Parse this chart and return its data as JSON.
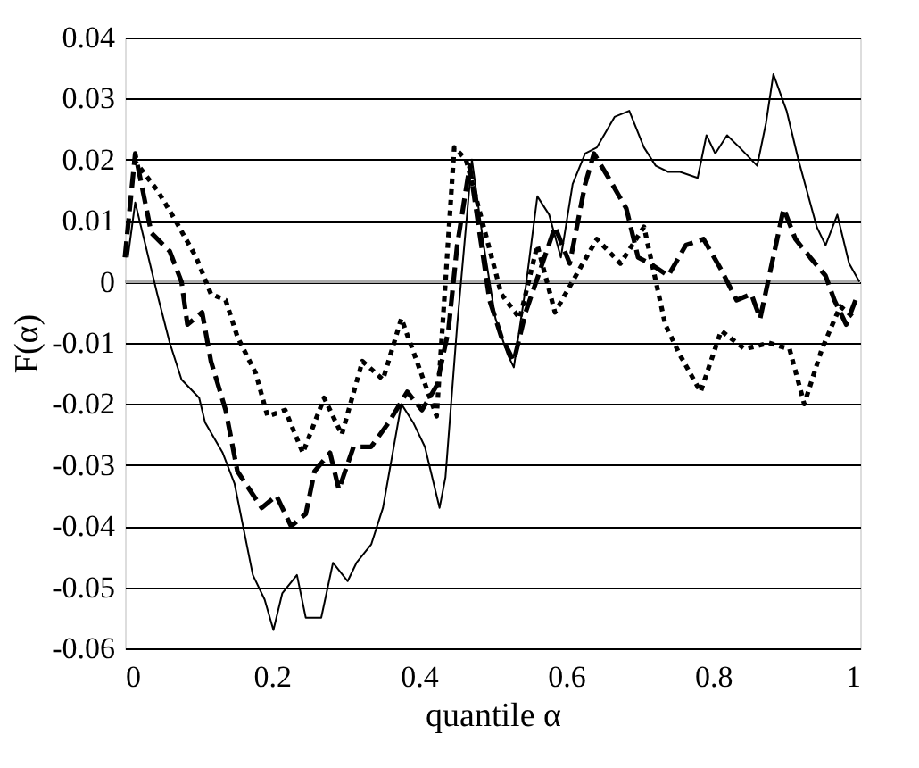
{
  "chart_data": {
    "type": "line",
    "xlabel": "quantile α",
    "ylabel": "F(α)",
    "xlim": [
      0,
      1
    ],
    "xticks": [
      0,
      0.2,
      0.4,
      0.6,
      0.8,
      1
    ],
    "ylim": [
      -0.06,
      0.04
    ],
    "yticks": [
      -0.06,
      -0.05,
      -0.04,
      -0.03,
      -0.02,
      -0.01,
      0,
      0.01,
      0.02,
      0.03,
      0.04
    ],
    "grid": "y",
    "marker": "none",
    "ref_lines": [
      {
        "axis": "y",
        "value": 0,
        "color": "#aaaaaa"
      }
    ],
    "series": [
      {
        "color": "#000000",
        "line_style": "solid",
        "x": [
          0.004,
          0.014,
          0.028,
          0.044,
          0.061,
          0.077,
          0.101,
          0.109,
          0.133,
          0.149,
          0.174,
          0.19,
          0.202,
          0.214,
          0.234,
          0.246,
          0.267,
          0.283,
          0.303,
          0.315,
          0.335,
          0.351,
          0.376,
          0.392,
          0.408,
          0.428,
          0.436,
          0.452,
          0.472,
          0.488,
          0.504,
          0.521,
          0.529,
          0.545,
          0.561,
          0.577,
          0.593,
          0.609,
          0.626,
          0.642,
          0.666,
          0.686,
          0.706,
          0.722,
          0.739,
          0.755,
          0.779,
          0.791,
          0.803,
          0.819,
          0.836,
          0.86,
          0.872,
          0.882,
          0.9,
          0.916,
          0.941,
          0.953,
          0.969,
          0.985,
          0.999
        ],
        "values": [
          0.004,
          0.013,
          0.006,
          -0.002,
          -0.01,
          -0.016,
          -0.019,
          -0.023,
          -0.028,
          -0.033,
          -0.048,
          -0.052,
          -0.057,
          -0.051,
          -0.048,
          -0.055,
          -0.055,
          -0.046,
          -0.049,
          -0.046,
          -0.043,
          -0.037,
          -0.02,
          -0.023,
          -0.027,
          -0.037,
          -0.032,
          -0.007,
          0.02,
          0.006,
          -0.006,
          -0.012,
          -0.014,
          -0.001,
          0.014,
          0.011,
          0.004,
          0.016,
          0.021,
          0.022,
          0.027,
          0.028,
          0.022,
          0.019,
          0.018,
          0.018,
          0.017,
          0.024,
          0.021,
          0.024,
          0.022,
          0.019,
          0.026,
          0.034,
          0.028,
          0.02,
          0.009,
          0.006,
          0.011,
          0.003,
          0.0
        ]
      },
      {
        "color": "#000000",
        "line_style": "dashed",
        "x": [
          0.0,
          0.014,
          0.036,
          0.061,
          0.077,
          0.085,
          0.105,
          0.117,
          0.137,
          0.153,
          0.186,
          0.206,
          0.226,
          0.246,
          0.258,
          0.279,
          0.291,
          0.311,
          0.335,
          0.359,
          0.384,
          0.404,
          0.424,
          0.44,
          0.452,
          0.469,
          0.48,
          0.496,
          0.512,
          0.529,
          0.545,
          0.565,
          0.585,
          0.605,
          0.626,
          0.638,
          0.658,
          0.682,
          0.698,
          0.714,
          0.739,
          0.763,
          0.787,
          0.811,
          0.832,
          0.852,
          0.864,
          0.88,
          0.896,
          0.912,
          0.932,
          0.953,
          0.965,
          0.981,
          0.997
        ],
        "values": [
          0.004,
          0.021,
          0.008,
          0.005,
          0.0,
          -0.007,
          -0.005,
          -0.013,
          -0.021,
          -0.031,
          -0.037,
          -0.035,
          -0.04,
          -0.038,
          -0.031,
          -0.028,
          -0.034,
          -0.027,
          -0.027,
          -0.023,
          -0.018,
          -0.021,
          -0.017,
          -0.008,
          0.006,
          0.019,
          0.01,
          -0.003,
          -0.009,
          -0.013,
          -0.005,
          0.002,
          0.009,
          0.003,
          0.016,
          0.021,
          0.017,
          0.012,
          0.004,
          0.003,
          0.001,
          0.006,
          0.007,
          0.002,
          -0.003,
          -0.002,
          -0.006,
          0.003,
          0.012,
          0.007,
          0.004,
          0.001,
          -0.003,
          -0.007,
          -0.002
        ]
      },
      {
        "color": "#000000",
        "line_style": "dotted",
        "x": [
          0.012,
          0.044,
          0.069,
          0.097,
          0.117,
          0.137,
          0.153,
          0.178,
          0.194,
          0.218,
          0.242,
          0.271,
          0.295,
          0.323,
          0.351,
          0.376,
          0.4,
          0.424,
          0.448,
          0.464,
          0.512,
          0.537,
          0.561,
          0.585,
          0.618,
          0.642,
          0.674,
          0.706,
          0.735,
          0.755,
          0.783,
          0.811,
          0.843,
          0.876,
          0.904,
          0.924,
          0.948,
          0.973,
          0.993
        ],
        "values": [
          0.02,
          0.015,
          0.01,
          0.004,
          -0.002,
          -0.003,
          -0.009,
          -0.015,
          -0.022,
          -0.021,
          -0.028,
          -0.019,
          -0.025,
          -0.013,
          -0.016,
          -0.006,
          -0.014,
          -0.022,
          0.022,
          0.02,
          -0.002,
          -0.006,
          0.006,
          -0.005,
          0.002,
          0.007,
          0.003,
          0.009,
          -0.007,
          -0.012,
          -0.018,
          -0.008,
          -0.011,
          -0.01,
          -0.011,
          -0.02,
          -0.011,
          -0.004,
          -0.006
        ]
      }
    ]
  }
}
